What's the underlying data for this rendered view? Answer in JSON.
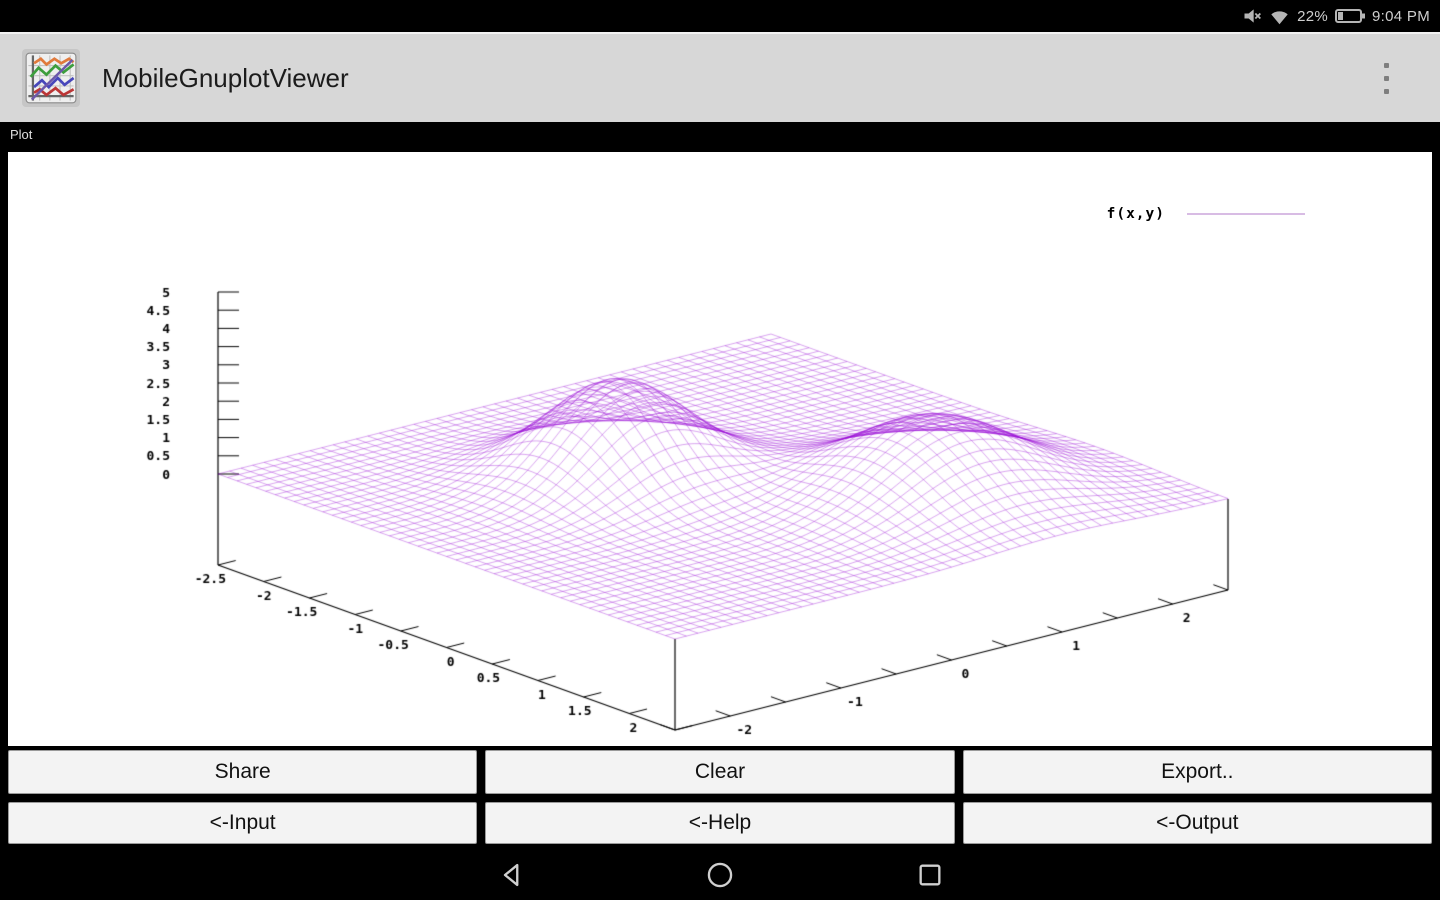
{
  "status_bar": {
    "battery_level": "22%",
    "time": "9:04 PM",
    "icons": [
      "volume-mute",
      "wifi",
      "battery"
    ]
  },
  "app_bar": {
    "title": "MobileGnuplotViewer",
    "overflow_icon": "three-dots-vertical"
  },
  "plot_panel": {
    "label": "Plot"
  },
  "chart_data": {
    "type": "surface3d",
    "legend_label": "f(x,y)",
    "line_color": "#9400d3",
    "legend_sample_color": "#d8bce4",
    "xrange": [
      -2.5,
      2.5
    ],
    "yrange": [
      -2.5,
      2.5
    ],
    "zrange": [
      0,
      5
    ],
    "tick_step": 0.5,
    "x_tick_labels": {
      "values": [
        -2.5,
        -2,
        -1.5,
        -1,
        -0.5,
        0,
        0.5,
        1,
        1.5,
        2
      ],
      "texts": [
        "-2.5",
        "-2",
        "-1.5",
        "-1",
        "-0.5",
        "0",
        "0.5",
        "1",
        "1.5",
        "2"
      ]
    },
    "y_tick_labels": {
      "values": [
        -2,
        -1,
        0,
        1,
        2
      ],
      "texts": [
        "-2",
        "-1",
        "0",
        "1",
        "2"
      ]
    },
    "z_tick_labels": {
      "values": [
        0,
        0.5,
        1,
        1.5,
        2,
        2.5,
        3,
        3.5,
        4,
        4.5,
        5
      ],
      "texts": [
        "0",
        "0.5",
        "1",
        "1.5",
        "2",
        "2.5",
        "3",
        "3.5",
        "4",
        "4.5",
        "5"
      ]
    },
    "isosamples": 48,
    "ticslevel": 0.5,
    "view": "60,30 gnuplot default",
    "surface_function": {
      "form": "sum_of_gaussians",
      "components": [
        {
          "amplitude": 2.7,
          "center_x": -0.6,
          "center_y": -0.45,
          "sigma2": 0.55
        },
        {
          "amplitude": 2.1,
          "center_x": 1.1,
          "center_y": 1.0,
          "sigma2": 0.8
        }
      ]
    }
  },
  "actions": {
    "share": "Share",
    "clear": "Clear",
    "export": "Export..",
    "input": "<-Input",
    "help": "<-Help",
    "output": "<-Output"
  },
  "nav_bar": {
    "icons": [
      "back",
      "home",
      "recents"
    ]
  }
}
